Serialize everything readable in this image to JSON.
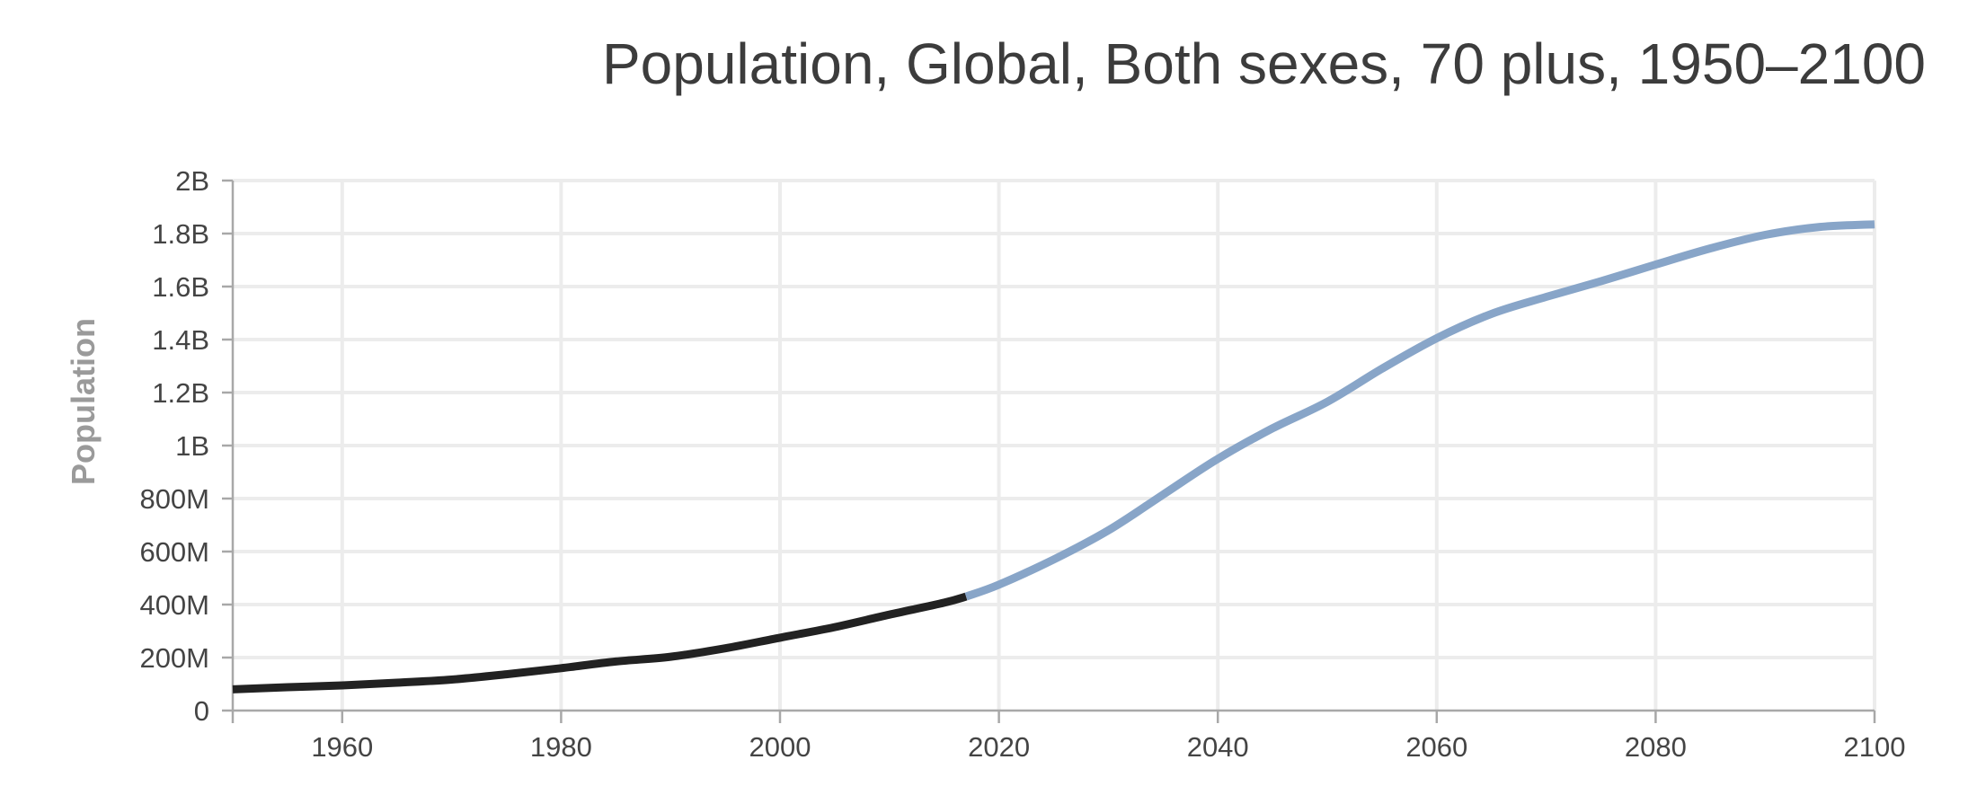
{
  "colors": {
    "historical": "#222222",
    "projection": "#88a5c8",
    "grid": "#ececec",
    "axis": "#a8a8a8",
    "text": "#444444",
    "title": "#3c3c3c",
    "ylabel": "#9a9a9a"
  },
  "chart_data": {
    "type": "line",
    "title": "Population, Global, Both sexes, 70 plus, 1950–2100",
    "xlabel": "",
    "ylabel": "Population",
    "xlim": [
      1950,
      2100
    ],
    "ylim": [
      0,
      2000000000
    ],
    "grid": true,
    "legend": "none",
    "x_ticks": [
      1960,
      1980,
      2000,
      2020,
      2040,
      2060,
      2080,
      2100
    ],
    "x_tick_labels": [
      "1960",
      "1980",
      "2000",
      "2020",
      "2040",
      "2060",
      "2080",
      "2100"
    ],
    "y_ticks": [
      0,
      200000000,
      400000000,
      600000000,
      800000000,
      1000000000,
      1200000000,
      1400000000,
      1600000000,
      1800000000,
      2000000000
    ],
    "y_tick_labels": [
      "0",
      "200M",
      "400M",
      "600M",
      "800M",
      "1B",
      "1.2B",
      "1.4B",
      "1.6B",
      "1.8B",
      "2B"
    ],
    "series": [
      {
        "style": "historical",
        "x": [
          1950,
          1955,
          1960,
          1965,
          1970,
          1975,
          1980,
          1985,
          1990,
          1995,
          2000,
          2005,
          2010,
          2015,
          2017
        ],
        "y": [
          80000000,
          88000000,
          95000000,
          105000000,
          117000000,
          137000000,
          160000000,
          185000000,
          203000000,
          235000000,
          275000000,
          315000000,
          362000000,
          407000000,
          430000000
        ]
      },
      {
        "style": "projection",
        "x": [
          2017,
          2020,
          2025,
          2030,
          2035,
          2040,
          2045,
          2050,
          2055,
          2060,
          2065,
          2070,
          2075,
          2080,
          2085,
          2090,
          2095,
          2100
        ],
        "y": [
          430000000,
          475000000,
          570000000,
          680000000,
          815000000,
          950000000,
          1065000000,
          1165000000,
          1290000000,
          1405000000,
          1497000000,
          1561000000,
          1620000000,
          1683000000,
          1744000000,
          1795000000,
          1825000000,
          1835000000
        ]
      }
    ]
  }
}
